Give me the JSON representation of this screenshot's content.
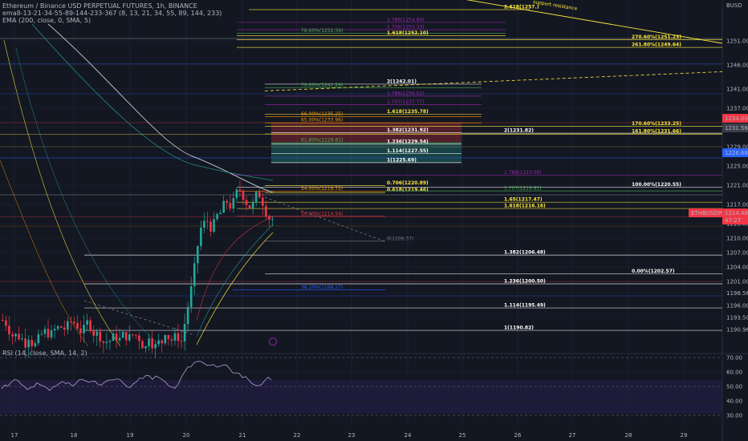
{
  "header": {
    "symbol_line": "Ethereum / Binance USD PERPETUAL FUTURES, 1h, BINANCE",
    "ema_line": "ema8-13-21-34-55-89-144-233-367 (8, 13, 21, 34, 55, 89, 144, 233)",
    "ema200_line": "EMA (200, close, 0, SMA, 5)",
    "rsi_line": "RSI (14, close, SMA, 14, 2)"
  },
  "currency_label": "BUSD",
  "annotation": "support resistance",
  "price_badges": [
    {
      "label": "1234.00",
      "color": "#f23645"
    },
    {
      "label": "1231.56",
      "color": "#3a3e49"
    },
    {
      "label": "1226.68",
      "color": "#2962ff"
    },
    {
      "label": "ETHBUSDPERP",
      "color": "#f23645"
    },
    {
      "label": "1214.48",
      "color": "#f23645"
    },
    {
      "label": "47:27",
      "color": "#f23645"
    }
  ],
  "chart_data": {
    "type": "candlestick",
    "timeframe": "1h",
    "x_ticks": [
      "17",
      "18",
      "19",
      "20",
      "21",
      "22",
      "23",
      "24",
      "25",
      "26",
      "27",
      "28",
      "29"
    ],
    "y_ticks": [
      1190.96,
      1193.5,
      1196.0,
      1198.56,
      1201.0,
      1204.0,
      1207.0,
      1210.0,
      1213.0,
      1217.0,
      1221.0,
      1225.0,
      1229.0,
      1233.0,
      1237.0,
      1241.0,
      1246.0,
      1251.0
    ],
    "rsi_ticks": [
      70.0,
      60.0,
      50.0,
      40.0,
      30.0
    ],
    "last_price": 1214.48,
    "levels": [
      {
        "label": "2.618(1257.)",
        "price": 1257.5,
        "color": "#ffeb3b"
      },
      {
        "label": "1.786(1254.84)",
        "price": 1254.84,
        "color": "#9c27b0"
      },
      {
        "label": "1.706(1253.33)",
        "price": 1253.33,
        "color": "#9c27b0"
      },
      {
        "label": "78.60%(1252.56)",
        "price": 1252.56,
        "color": "#4caf50"
      },
      {
        "label": "1.618(1252.10)",
        "price": 1252.1,
        "color": "#ffeb3b"
      },
      {
        "label": "270.60%(1251.23)",
        "price": 1251.23,
        "color": "#ffeb3b"
      },
      {
        "label": "261.80%(1249.64)",
        "price": 1249.64,
        "color": "#ffeb3b"
      },
      {
        "label": "2(1242.01)",
        "price": 1242.01,
        "color": "#ffffff"
      },
      {
        "label": "70.60%(1241.29)",
        "price": 1241.29,
        "color": "#4caf50"
      },
      {
        "label": "1.786(1239.52)",
        "price": 1239.52,
        "color": "#9c27b0"
      },
      {
        "label": "1.707(1237.77)",
        "price": 1237.77,
        "color": "#9c27b0"
      },
      {
        "label": "1.618(1235.78)",
        "price": 1235.78,
        "color": "#ffeb3b"
      },
      {
        "label": "66.00%(1235.25)",
        "price": 1235.25,
        "color": "#ff9800"
      },
      {
        "label": "65.00%(1233.96)",
        "price": 1233.96,
        "color": "#ff9800"
      },
      {
        "label": "170.60%(1233.25)",
        "price": 1233.25,
        "color": "#ffeb3b"
      },
      {
        "label": "1.382(1231.92)",
        "price": 1231.92,
        "color": "#ffffff"
      },
      {
        "label": "2(1231.82)",
        "price": 1231.82,
        "color": "#ffffff"
      },
      {
        "label": "161.80%(1231.66)",
        "price": 1231.66,
        "color": "#ffeb3b"
      },
      {
        "label": "61.80%(1229.81)",
        "price": 1229.81,
        "color": "#4caf50"
      },
      {
        "label": "1.236(1229.54)",
        "price": 1229.54,
        "color": "#ffffff"
      },
      {
        "label": "1.114(1227.55)",
        "price": 1227.55,
        "color": "#ffffff"
      },
      {
        "label": "1(1225.69)",
        "price": 1225.69,
        "color": "#ffffff"
      },
      {
        "label": "1.786(1223.09)",
        "price": 1223.09,
        "color": "#9c27b0"
      },
      {
        "label": "0.706(1220.89)",
        "price": 1220.89,
        "color": "#ffeb3b"
      },
      {
        "label": "100.00%(1220.55)",
        "price": 1220.55,
        "color": "#ffffff"
      },
      {
        "label": "54.00%(1219.72)",
        "price": 1219.72,
        "color": "#ff9800"
      },
      {
        "label": "0.618(1219.46)",
        "price": 1219.46,
        "color": "#ffeb3b"
      },
      {
        "label": "1.707(1219.81)",
        "price": 1219.81,
        "color": "#4caf50"
      },
      {
        "label": "1.65(1217.47)",
        "price": 1217.47,
        "color": "#ffeb3b"
      },
      {
        "label": "1.618(1216.16)",
        "price": 1216.16,
        "color": "#ffeb3b"
      },
      {
        "label": "50.00%(1214.54)",
        "price": 1214.54,
        "color": "#f23645"
      },
      {
        "label": "0(1209.37)",
        "price": 1209.37,
        "color": "#787b86"
      },
      {
        "label": "1.382(1206.48)",
        "price": 1206.48,
        "color": "#ffffff"
      },
      {
        "label": "0.00%(1202.57)",
        "price": 1202.57,
        "color": "#ffffff"
      },
      {
        "label": "1.236(1200.50)",
        "price": 1200.5,
        "color": "#ffffff"
      },
      {
        "label": "38.20%(1199.27)",
        "price": 1199.27,
        "color": "#2962ff"
      },
      {
        "label": "1.114(1195.49)",
        "price": 1195.49,
        "color": "#ffffff"
      },
      {
        "label": "1(1190.82)",
        "price": 1190.82,
        "color": "#ffffff"
      }
    ]
  }
}
